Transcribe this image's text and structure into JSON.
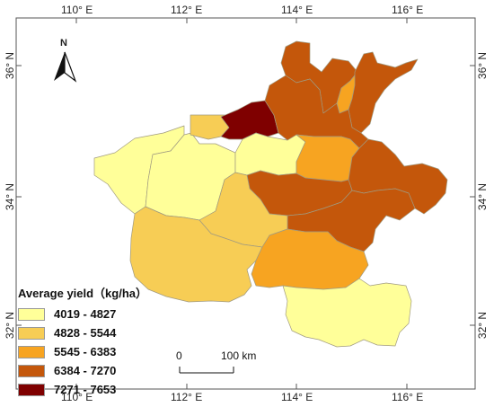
{
  "longitude_labels": [
    "110° E",
    "112° E",
    "114° E",
    "116° E"
  ],
  "latitude_labels": [
    "36° N",
    "34° N",
    "32° N"
  ],
  "north_arrow": {
    "label": "N",
    "icon": "north-arrow-icon"
  },
  "legend": {
    "title": "Average yield（kg/ha）",
    "classes": [
      {
        "label": "4019 - 4827",
        "color": "#ffff99"
      },
      {
        "label": "4828 - 5544",
        "color": "#f7cd55"
      },
      {
        "label": "5545 - 6383",
        "color": "#f7a421"
      },
      {
        "label": "6384 - 7270",
        "color": "#c4570b"
      },
      {
        "label": "7271 - 7653",
        "color": "#7f0000"
      }
    ]
  },
  "scale_bar": {
    "start_label": "0",
    "end_label": "100 km"
  },
  "regions": [
    {
      "id": "anyang",
      "class": 4
    },
    {
      "id": "puyang",
      "class": 4
    },
    {
      "id": "hebi",
      "class": 3
    },
    {
      "id": "xinxiang",
      "class": 4
    },
    {
      "id": "jiaozuo",
      "class": 5
    },
    {
      "id": "jiyuan",
      "class": 2
    },
    {
      "id": "sanmenxia",
      "class": 1
    },
    {
      "id": "luoyang",
      "class": 1
    },
    {
      "id": "zhengzhou",
      "class": 1
    },
    {
      "id": "kaifeng",
      "class": 3
    },
    {
      "id": "shangqiu",
      "class": 4
    },
    {
      "id": "xuchang",
      "class": 4
    },
    {
      "id": "zhoukou",
      "class": 4
    },
    {
      "id": "pingdingshan",
      "class": 2
    },
    {
      "id": "nanyang",
      "class": 2
    },
    {
      "id": "zhumadian",
      "class": 3
    },
    {
      "id": "xinyang",
      "class": 1
    }
  ]
}
